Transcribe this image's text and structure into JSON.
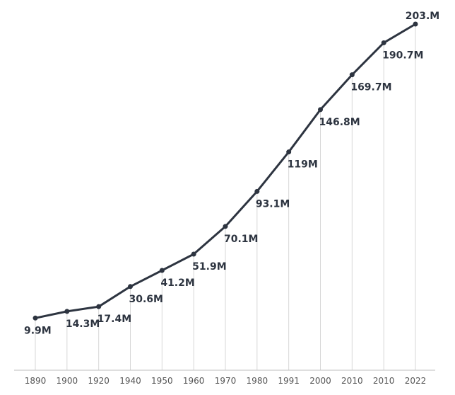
{
  "chart_data": {
    "type": "line",
    "title": "",
    "xlabel": "",
    "ylabel": "",
    "categories": [
      "1890",
      "1900",
      "1920",
      "1940",
      "1950",
      "1960",
      "1970",
      "1980",
      "1991",
      "2000",
      "2010",
      "2010",
      "2022"
    ],
    "series": [
      {
        "values": [
          9.9,
          14.3,
          17.4,
          30.6,
          41.2,
          51.9,
          70.1,
          93.1,
          119,
          146.8,
          169.7,
          190.7,
          203
        ],
        "labels": [
          "9.9M",
          "14.3M",
          "17.4M",
          "30.6M",
          "41.2M",
          "51.9M",
          "70.1M",
          "93.1M",
          "119M",
          "146.8M",
          "169.7M",
          "190.7M",
          "203.M"
        ]
      }
    ],
    "ylim": [
      0,
      210
    ],
    "grid": "vertical",
    "legend": "none",
    "colors": {
      "line": "#2d3440",
      "grid": "#d7d7d7",
      "axis": "#bdbdbd",
      "label": "#2d3440",
      "tick": "#555555"
    }
  }
}
